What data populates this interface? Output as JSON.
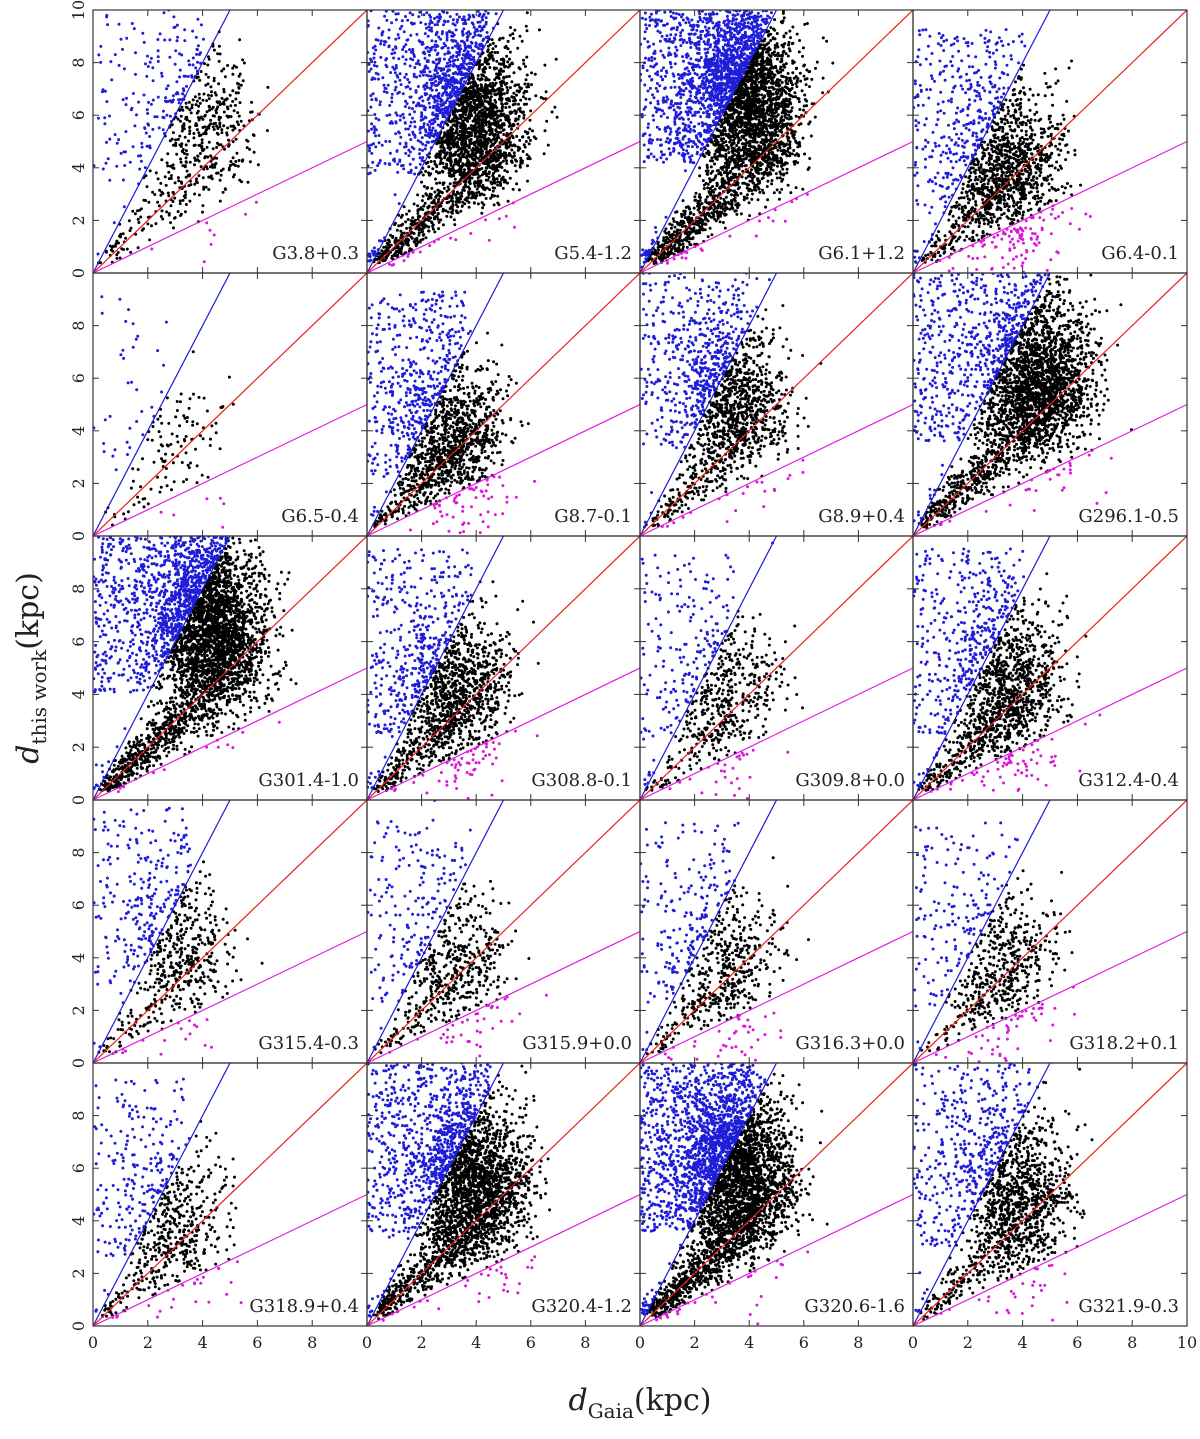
{
  "chart_data": {
    "type": "scatter",
    "xlabel_main": "d",
    "xlabel_sub": "Gaia",
    "xlabel_unit": "(kpc)",
    "ylabel_main": "d",
    "ylabel_sub": "this work",
    "ylabel_unit": "(kpc)",
    "xlim": [
      0,
      10
    ],
    "ylim": [
      0,
      10
    ],
    "x_tick_labels": [
      "0",
      "2",
      "4",
      "6",
      "8"
    ],
    "x_tick_labels_last_col": [
      "0",
      "2",
      "4",
      "6",
      "8",
      "10"
    ],
    "y_tick_labels": [
      "0",
      "2",
      "4",
      "6",
      "8"
    ],
    "y_tick_labels_top_row": [
      "0",
      "2",
      "4",
      "6",
      "8",
      "10"
    ],
    "reference_lines": [
      {
        "name": "y = 2x",
        "slope": 2.0,
        "color": "#1a1adb"
      },
      {
        "name": "y = x",
        "slope": 1.0,
        "color": "#e8211c"
      },
      {
        "name": "y = x/2",
        "slope": 0.5,
        "color": "#e01ee0"
      }
    ],
    "point_colors": {
      "above_2x": "#1e1ed8",
      "between": "#000000",
      "below_half": "#d81ad8"
    },
    "panels": [
      {
        "label": "G3.8+0.3",
        "density": "low",
        "center": [
          3.8,
          5.8
        ]
      },
      {
        "label": "G5.4-1.2",
        "density": "high",
        "center": [
          3.8,
          6.2
        ]
      },
      {
        "label": "G6.1+1.2",
        "density": "very-high",
        "center": [
          3.8,
          7.0
        ]
      },
      {
        "label": "G6.4-0.1",
        "density": "medium",
        "center": [
          3.4,
          3.8
        ]
      },
      {
        "label": "G6.5-0.4",
        "density": "very-low",
        "center": [
          3.0,
          3.5
        ]
      },
      {
        "label": "G8.7-0.1",
        "density": "medium",
        "center": [
          3.0,
          3.8
        ]
      },
      {
        "label": "G8.9+0.4",
        "density": "medium",
        "center": [
          3.3,
          5.5
        ]
      },
      {
        "label": "G296.1-0.5",
        "density": "high",
        "center": [
          4.5,
          6.0
        ]
      },
      {
        "label": "G301.4-1.0",
        "density": "very-high",
        "center": [
          4.2,
          6.8
        ]
      },
      {
        "label": "G308.8-0.1",
        "density": "medium",
        "center": [
          3.2,
          4.2
        ]
      },
      {
        "label": "G309.8+0.0",
        "density": "low",
        "center": [
          3.0,
          4.0
        ]
      },
      {
        "label": "G312.4-0.4",
        "density": "medium",
        "center": [
          3.4,
          4.2
        ]
      },
      {
        "label": "G315.4-0.3",
        "density": "low",
        "center": [
          3.0,
          4.5
        ]
      },
      {
        "label": "G315.9+0.0",
        "density": "low",
        "center": [
          3.2,
          3.8
        ]
      },
      {
        "label": "G316.3+0.0",
        "density": "low",
        "center": [
          3.0,
          3.8
        ]
      },
      {
        "label": "G318.2+0.1",
        "density": "low",
        "center": [
          3.2,
          3.6
        ]
      },
      {
        "label": "G318.9+0.4",
        "density": "low",
        "center": [
          2.8,
          4.0
        ]
      },
      {
        "label": "G320.4-1.2",
        "density": "high",
        "center": [
          3.8,
          5.6
        ]
      },
      {
        "label": "G320.6-1.6",
        "density": "very-high",
        "center": [
          3.5,
          6.0
        ]
      },
      {
        "label": "G321.9-0.3",
        "density": "medium",
        "center": [
          3.7,
          5.0
        ]
      }
    ]
  }
}
